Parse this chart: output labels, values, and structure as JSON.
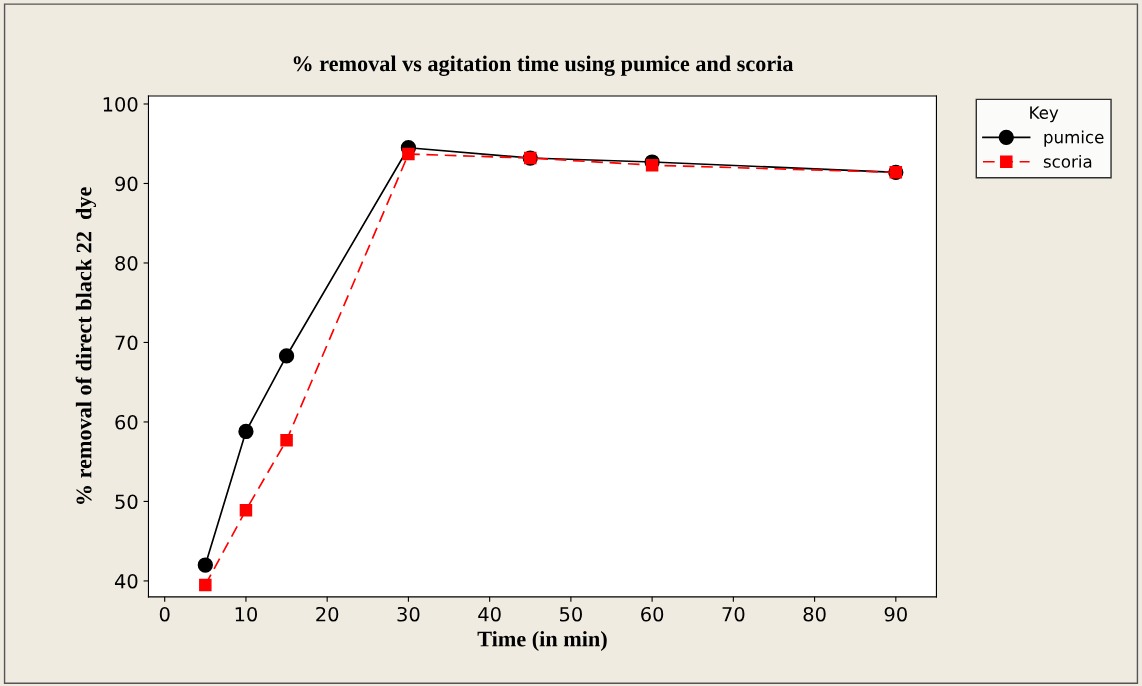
{
  "chart_data": {
    "type": "line",
    "title": "% removal vs agitation time using pumice and scoria",
    "xlabel": "Time (in min)",
    "ylabel": "% removal of direct black 22  dye",
    "legend_title": "Key",
    "legend": "top right",
    "x": [
      5,
      10,
      15,
      30,
      45,
      60,
      90
    ],
    "series": [
      {
        "name": "pumice",
        "color": "#000000",
        "marker": "circle",
        "line_style": "solid",
        "values": [
          42.0,
          58.8,
          68.3,
          94.5,
          93.2,
          92.7,
          91.4
        ]
      },
      {
        "name": "scoria",
        "color": "#ff0000",
        "marker": "square",
        "line_style": "dashed",
        "values": [
          39.5,
          48.9,
          57.7,
          93.7,
          93.2,
          92.3,
          91.4
        ]
      }
    ],
    "xlim": [
      -2,
      95
    ],
    "xticks": [
      0,
      10,
      20,
      30,
      40,
      50,
      60,
      70,
      80,
      90
    ],
    "ylim": [
      38,
      101
    ],
    "yticks": [
      40,
      50,
      60,
      70,
      80,
      90,
      100
    ],
    "grid": false
  }
}
